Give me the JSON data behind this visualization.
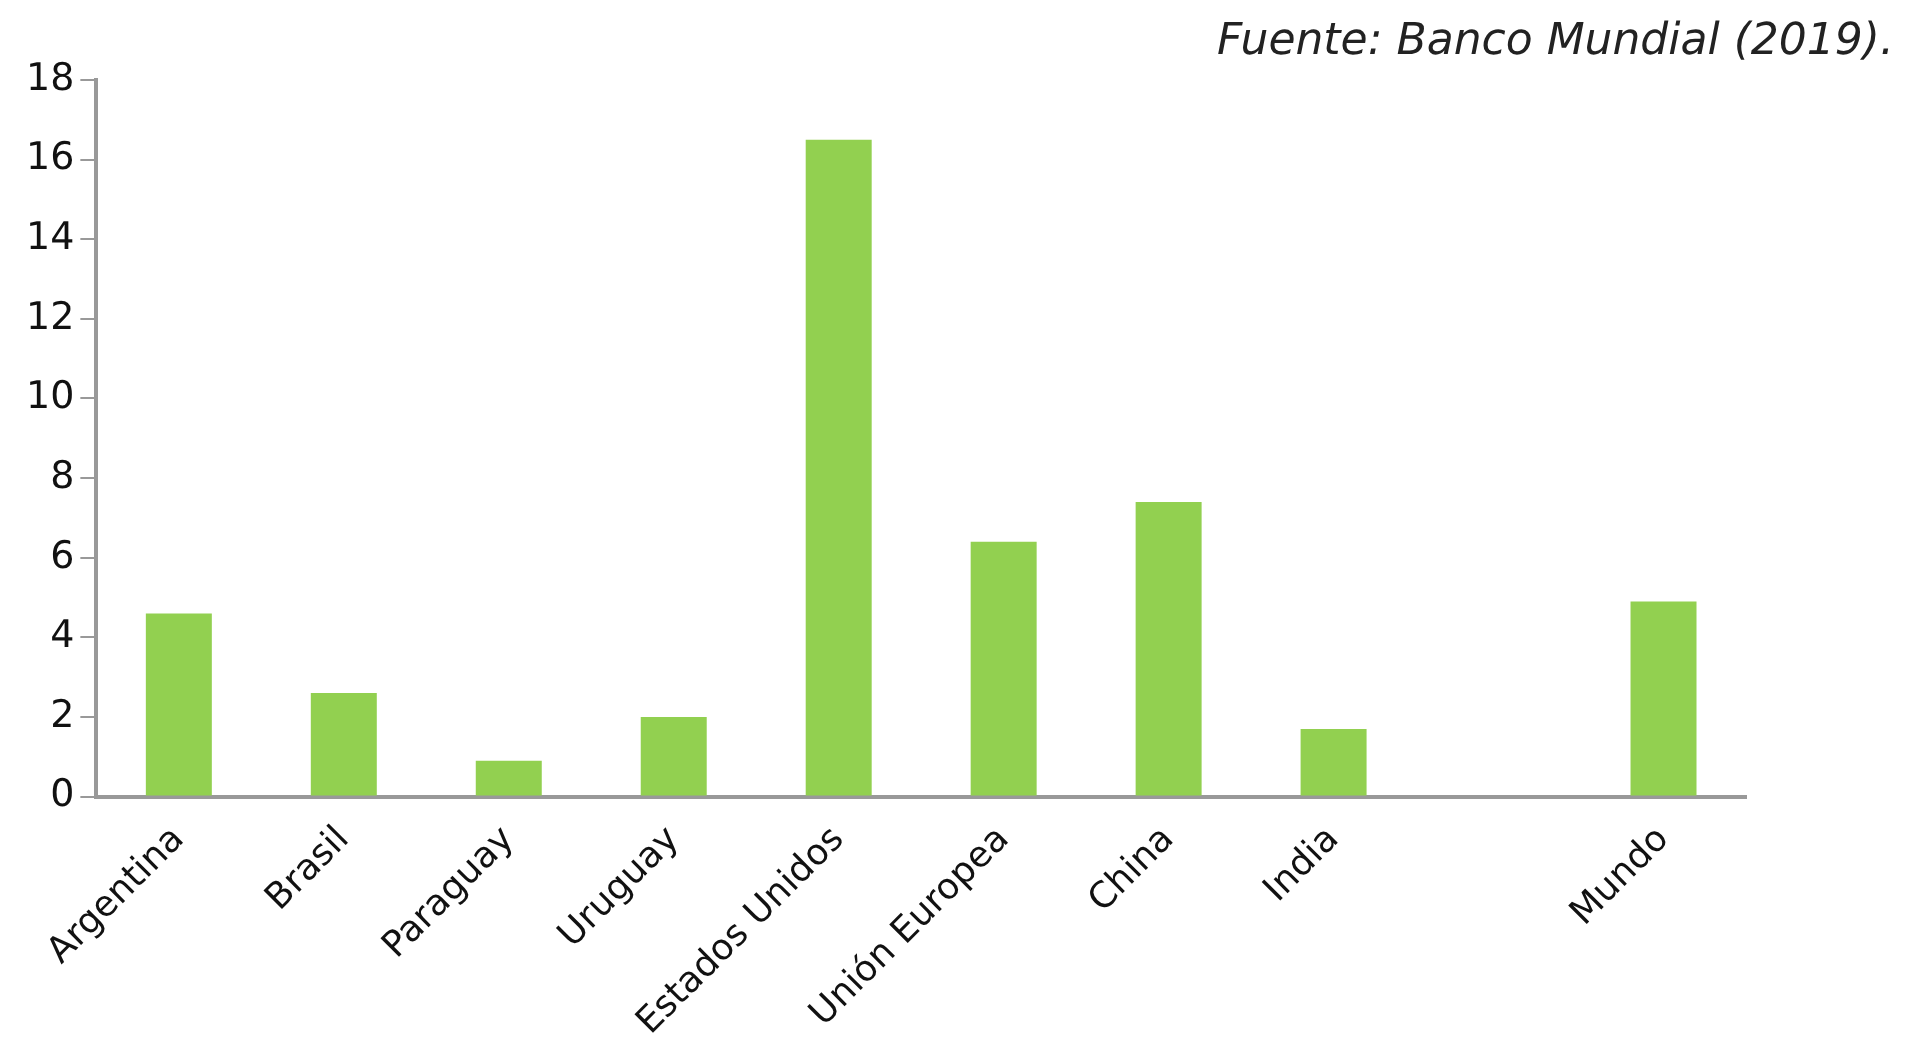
{
  "chart_data": {
    "type": "bar",
    "annotations": [
      "Fuente: Banco Mundial (2019)."
    ],
    "categories": [
      "Argentina",
      "Brasil",
      "Paraguay",
      "Uruguay",
      "Estados Unidos",
      "Unión Europea",
      "China",
      "India",
      null,
      "Mundo"
    ],
    "values": [
      4.6,
      2.6,
      0.9,
      2.0,
      16.5,
      6.4,
      7.4,
      1.7,
      null,
      4.9
    ],
    "color": "#92d050",
    "ylim": [
      0,
      18
    ],
    "yticks": [
      0,
      2,
      4,
      6,
      8,
      10,
      12,
      14,
      16,
      18
    ],
    "grid": false,
    "legend": false
  }
}
